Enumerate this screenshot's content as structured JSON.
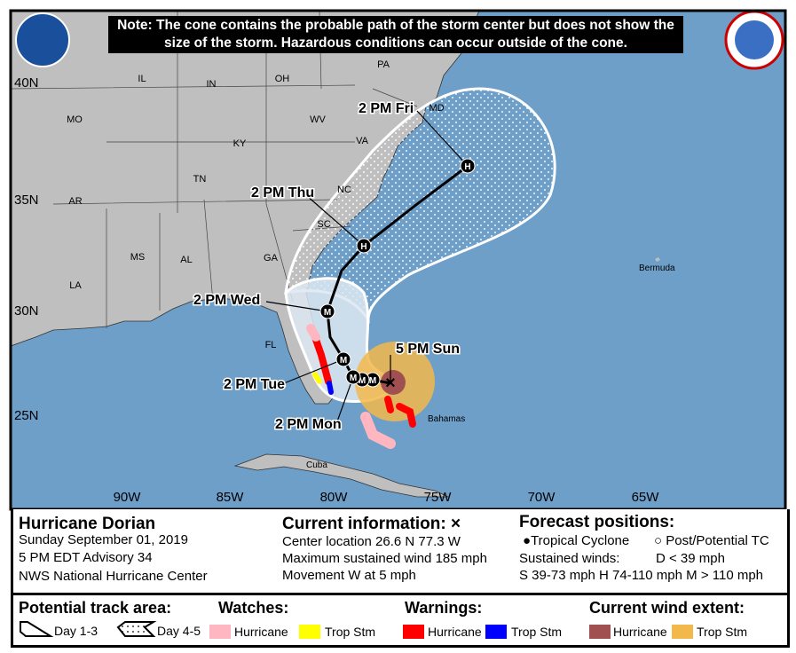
{
  "note": "Note: The cone contains the probable path of the storm center but does not show the size of the storm. Hazardous conditions can occur outside of the cone.",
  "logos": {
    "left": "NOAA",
    "right": "NATIONAL WEATHER SERVICE"
  },
  "map": {
    "colors": {
      "ocean": "#6e9fc9",
      "land": "#bfbfbf",
      "hurricane_warning": "#ff0000",
      "trop_stm_warning": "#0000ff",
      "hurricane_watch": "#ffb6c1",
      "trop_stm_watch": "#ffff00",
      "hurricane_wind": "#a05050",
      "trop_stm_wind": "#f2b84b"
    },
    "lat_labels": [
      "40N",
      "35N",
      "30N",
      "25N"
    ],
    "lon_labels": [
      "90W",
      "85W",
      "80W",
      "75W",
      "70W",
      "65W"
    ],
    "state_labels": [
      "PA",
      "IL",
      "IN",
      "OH",
      "MO",
      "KY",
      "WV",
      "VA",
      "MD",
      "TN",
      "NC",
      "AR",
      "SC",
      "MS",
      "AL",
      "GA",
      "LA",
      "FL"
    ],
    "place_labels": [
      "Bermuda",
      "Bahamas",
      "Cuba"
    ],
    "forecast_labels": [
      "2 PM Fri",
      "2 PM Thu",
      "2 PM Wed",
      "5 PM Sun",
      "2 PM Tue",
      "2 PM Mon"
    ],
    "forecast_markers": [
      "M",
      "M",
      "M",
      "M",
      "M",
      "H",
      "H"
    ]
  },
  "info": {
    "storm_name": "Hurricane Dorian",
    "date": "Sunday September 01, 2019",
    "advisory": "5 PM EDT Advisory 34",
    "center": "NWS National Hurricane Center",
    "current_title": "Current information: ×",
    "location": "Center location 26.6 N 77.3 W",
    "max_wind": "Maximum sustained wind 185 mph",
    "movement": "Movement W at 5 mph",
    "forecast_title": "Forecast positions:",
    "tropical_cyclone": "Tropical Cyclone",
    "post_tc": "Post/Potential TC",
    "sustained": "Sustained winds:",
    "d_line": "D < 39 mph",
    "shm_line": "S 39-73 mph  H 74-110 mph  M > 110 mph"
  },
  "legend": {
    "track_title": "Potential track area:",
    "day13": "Day 1-3",
    "day45": "Day 4-5",
    "watches_title": "Watches:",
    "watch_hurricane": "Hurricane",
    "watch_trop": "Trop Stm",
    "warnings_title": "Warnings:",
    "warn_hurricane": "Hurricane",
    "warn_trop": "Trop Stm",
    "wind_title": "Current wind extent:",
    "wind_hurricane": "Hurricane",
    "wind_trop": "Trop Stm"
  }
}
